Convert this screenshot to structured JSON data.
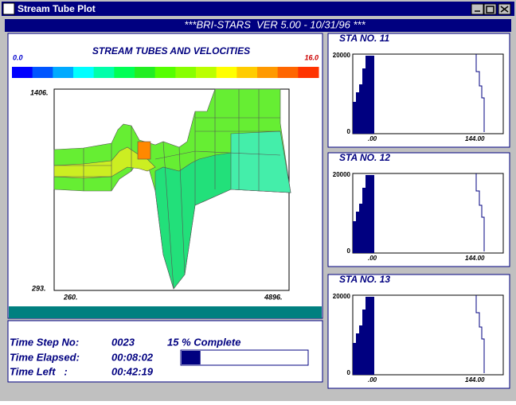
{
  "window": {
    "title": "Stream Tube Plot"
  },
  "banner": "***BRI-STARS  VER 5.00 - 10/31/96 ***",
  "plot": {
    "title": "STREAM TUBES AND VELOCITIES",
    "colorbar": {
      "min_label": "0.0",
      "max_label": "16.0",
      "colors": [
        "#0000ff",
        "#0055ff",
        "#00aaff",
        "#00ffff",
        "#00ffaa",
        "#00ff55",
        "#22ee22",
        "#55ff00",
        "#88ff00",
        "#bbff00",
        "#ffff00",
        "#ffcc00",
        "#ff9900",
        "#ff6600",
        "#ff3300"
      ]
    },
    "y_top_label": "1406.",
    "y_bottom_label": "293.",
    "x_left_label": "260.",
    "x_right_label": "4896."
  },
  "stations": [
    {
      "title": "STA NO. 11",
      "y_top": "20000",
      "y_bottom": "0",
      "x_left": ".00",
      "x_right": "144.00"
    },
    {
      "title": "STA NO. 12",
      "y_top": "20000",
      "y_bottom": "0",
      "x_left": ".00",
      "x_right": "144.00"
    },
    {
      "title": "STA NO. 13",
      "y_top": "20000",
      "y_bottom": "0",
      "x_left": ".00",
      "x_right": "144.00"
    }
  ],
  "status": {
    "time_step_label": "Time Step No:",
    "time_step": "0023",
    "progress": {
      "value": 15,
      "label": "15 % Complete"
    },
    "elapsed_label": "Time Elapsed:",
    "elapsed": "00:08:02",
    "left_label": "Time Left   :",
    "left": "00:42:19"
  }
}
